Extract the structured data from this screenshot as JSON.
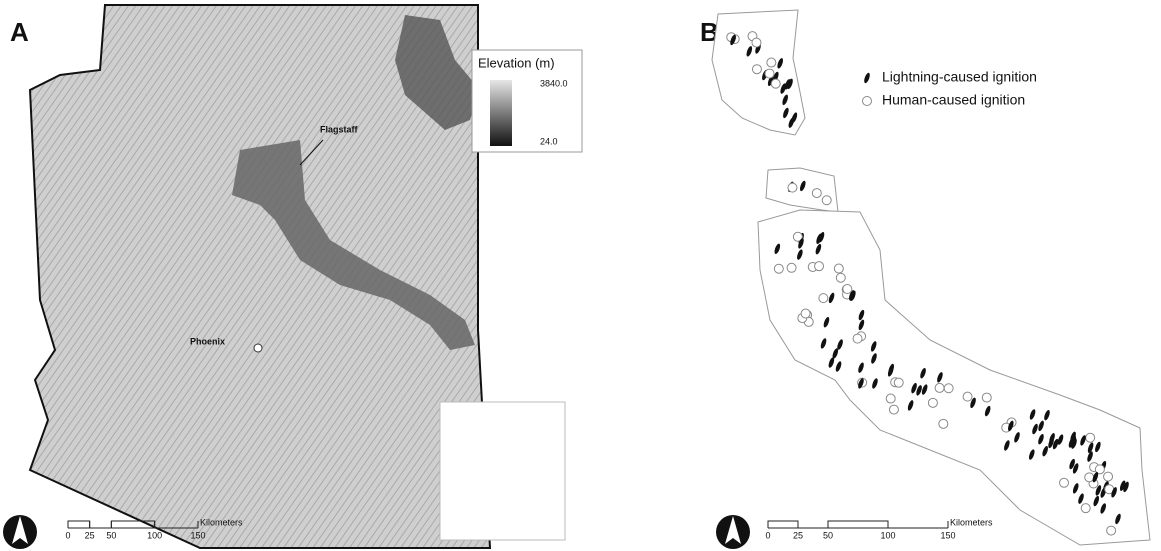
{
  "panel_a": {
    "label": "A",
    "legend_title": "Elevation (m)",
    "legend_max": "3840.0",
    "legend_min": "24.0",
    "places": [
      "Flagstaff",
      "Phoenix"
    ],
    "scale": {
      "ticks": [
        0,
        25,
        50,
        100,
        150
      ],
      "unit": "Kilometers"
    }
  },
  "panel_b": {
    "label": "B",
    "legend": [
      "Lightning-caused ignition",
      "Human-caused ignition"
    ],
    "scale": {
      "ticks": [
        0,
        25,
        50,
        100,
        150
      ],
      "unit": "Kilometers"
    }
  }
}
